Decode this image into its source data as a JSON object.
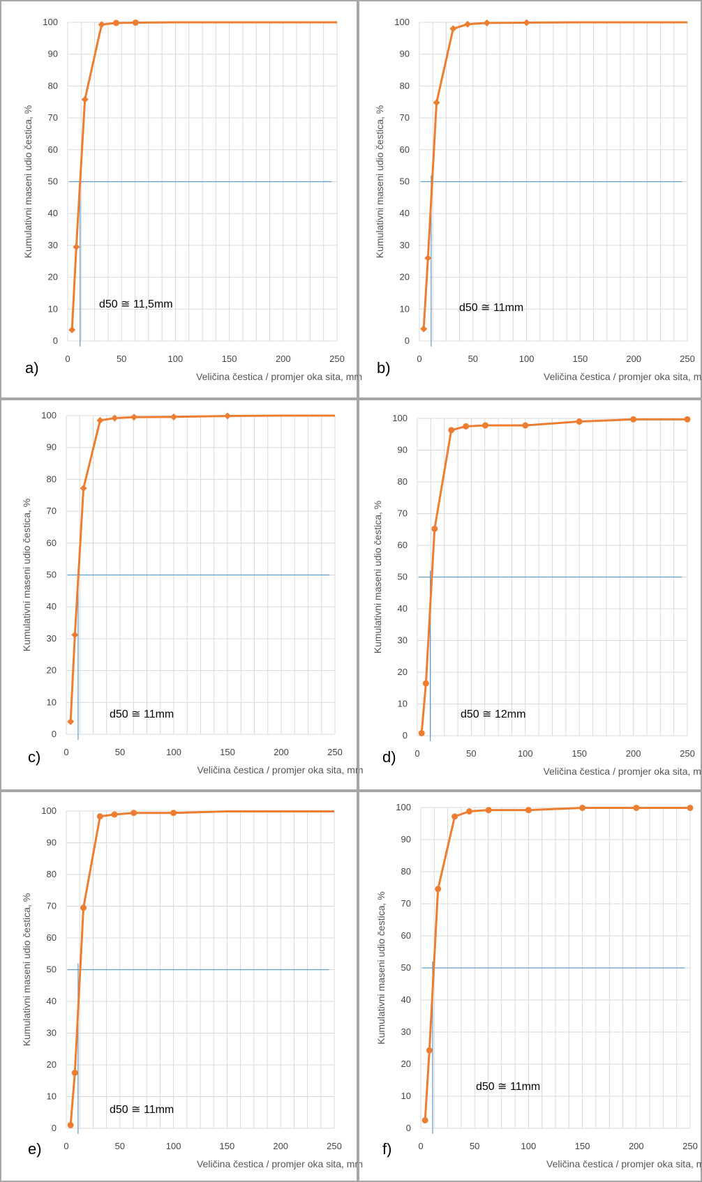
{
  "colors": {
    "series": "#ED7D31",
    "guide": "#5B9BD5",
    "grid": "#D9D9D9",
    "panel_border": "#A6A6A6"
  },
  "chart_data": [
    {
      "panel": "a)",
      "type": "line",
      "xlabel": "Veličina čestica / promjer oka sita, mm",
      "ylabel": "Kumulativni maseni udio čestica, %",
      "xlim": [
        0,
        250
      ],
      "ylim": [
        0,
        100
      ],
      "xticks": [
        "0",
        "50",
        "100",
        "150",
        "200",
        "250"
      ],
      "yticks": [
        "0",
        "10",
        "20",
        "30",
        "40",
        "50",
        "60",
        "70",
        "80",
        "90",
        "100"
      ],
      "grid": true,
      "marker": "diamond-circle",
      "annotation": "d50 ≅ 11,5mm",
      "d50": 11.5,
      "series": [
        {
          "x": [
            4,
            8,
            16,
            31.5,
            45,
            63,
            100,
            150,
            200,
            250
          ],
          "y": [
            3.5,
            29.5,
            75.8,
            99.3,
            99.8,
            99.9,
            100,
            100,
            100,
            100
          ],
          "markers": [
            true,
            true,
            true,
            true,
            true,
            true,
            false,
            false,
            false,
            false
          ]
        }
      ]
    },
    {
      "panel": "b)",
      "type": "line",
      "xlabel": "Veličina čestica / promjer oka sita, mm",
      "ylabel": "Kumulativni maseni udio čestica, %",
      "xlim": [
        0,
        250
      ],
      "ylim": [
        0,
        100
      ],
      "xticks": [
        "0",
        "50",
        "100",
        "150",
        "200",
        "250"
      ],
      "yticks": [
        "0",
        "10",
        "20",
        "30",
        "40",
        "50",
        "60",
        "70",
        "80",
        "90",
        "100"
      ],
      "grid": true,
      "marker": "diamond",
      "annotation": "d50 ≅ 11mm",
      "d50": 11,
      "series": [
        {
          "x": [
            4,
            8,
            16,
            31.5,
            45,
            63,
            100,
            150,
            200,
            250
          ],
          "y": [
            3.8,
            26,
            74.8,
            98,
            99.4,
            99.8,
            99.9,
            100,
            100,
            100
          ],
          "markers": [
            true,
            true,
            true,
            true,
            true,
            true,
            true,
            false,
            false,
            false
          ]
        }
      ]
    },
    {
      "panel": "c)",
      "type": "line",
      "xlabel": "Veličina čestica / promjer oka sita, mm",
      "ylabel": "Kumulativni maseni udio čestica, %",
      "xlim": [
        0,
        250
      ],
      "ylim": [
        0,
        100
      ],
      "xticks": [
        "0",
        "50",
        "100",
        "150",
        "200",
        "250"
      ],
      "yticks": [
        "0",
        "10",
        "20",
        "30",
        "40",
        "50",
        "60",
        "70",
        "80",
        "90",
        "100"
      ],
      "grid": true,
      "marker": "diamond",
      "annotation": "d50 ≅ 11mm",
      "d50": 11,
      "series": [
        {
          "x": [
            4,
            8,
            16,
            31.5,
            45,
            63,
            100,
            150,
            200,
            250
          ],
          "y": [
            4,
            31.2,
            77.2,
            98.5,
            99.2,
            99.5,
            99.6,
            99.9,
            100,
            100
          ],
          "markers": [
            true,
            true,
            true,
            true,
            true,
            true,
            true,
            true,
            false,
            false
          ]
        }
      ]
    },
    {
      "panel": "d)",
      "type": "line",
      "xlabel": "Veličina čestica / promjer oka sita, mm",
      "ylabel": "Kumulativni maseni udio čestica, %",
      "xlim": [
        0,
        250
      ],
      "ylim": [
        0,
        100
      ],
      "xticks": [
        "0",
        "50",
        "100",
        "150",
        "200",
        "250"
      ],
      "yticks": [
        "0",
        "10",
        "20",
        "30",
        "40",
        "50",
        "60",
        "70",
        "80",
        "90",
        "100"
      ],
      "grid": true,
      "marker": "circle",
      "annotation": "d50 ≅ 12mm",
      "d50": 12,
      "series": [
        {
          "x": [
            4,
            8,
            16,
            31.5,
            45,
            63,
            100,
            150,
            200,
            250
          ],
          "y": [
            0.8,
            16.5,
            65.2,
            96.3,
            97.5,
            97.8,
            97.8,
            99,
            99.7,
            99.7
          ],
          "markers": [
            true,
            true,
            true,
            true,
            true,
            true,
            true,
            true,
            true,
            true
          ]
        }
      ]
    },
    {
      "panel": "e)",
      "type": "line",
      "xlabel": "Veličina čestica / promjer oka sita, mm",
      "ylabel": "Kumulativni maseni udio čestica, %",
      "xlim": [
        0,
        250
      ],
      "ylim": [
        0,
        100
      ],
      "xticks": [
        "0",
        "50",
        "100",
        "150",
        "200",
        "250"
      ],
      "yticks": [
        "0",
        "10",
        "20",
        "30",
        "40",
        "50",
        "60",
        "70",
        "80",
        "90",
        "100"
      ],
      "grid": true,
      "marker": "circle",
      "annotation": "d50 ≅ 11mm",
      "d50": 11,
      "series": [
        {
          "x": [
            4,
            8,
            16,
            31.5,
            45,
            63,
            100,
            150,
            200,
            250
          ],
          "y": [
            1,
            17.5,
            69.5,
            98.3,
            98.9,
            99.4,
            99.4,
            99.9,
            99.9,
            99.9
          ],
          "markers": [
            true,
            true,
            true,
            true,
            true,
            true,
            true,
            false,
            false,
            false
          ]
        }
      ]
    },
    {
      "panel": "f)",
      "type": "line",
      "xlabel": "Veličina čestica / promjer oka sita, mm",
      "ylabel": "Kumulativni maseni udio čestica, %",
      "xlim": [
        0,
        250
      ],
      "ylim": [
        0,
        100
      ],
      "xticks": [
        "0",
        "50",
        "100",
        "150",
        "200",
        "250"
      ],
      "yticks": [
        "0",
        "10",
        "20",
        "30",
        "40",
        "50",
        "60",
        "70",
        "80",
        "90",
        "100"
      ],
      "grid": true,
      "marker": "circle",
      "annotation": "d50 ≅ 11mm",
      "d50": 11,
      "series": [
        {
          "x": [
            4,
            8,
            16,
            31.5,
            45,
            63,
            100,
            150,
            200,
            250
          ],
          "y": [
            2.5,
            24.3,
            74.6,
            97.2,
            98.8,
            99.2,
            99.2,
            99.9,
            99.9,
            99.9
          ],
          "markers": [
            true,
            true,
            true,
            true,
            true,
            true,
            true,
            true,
            true,
            true
          ]
        }
      ]
    }
  ]
}
